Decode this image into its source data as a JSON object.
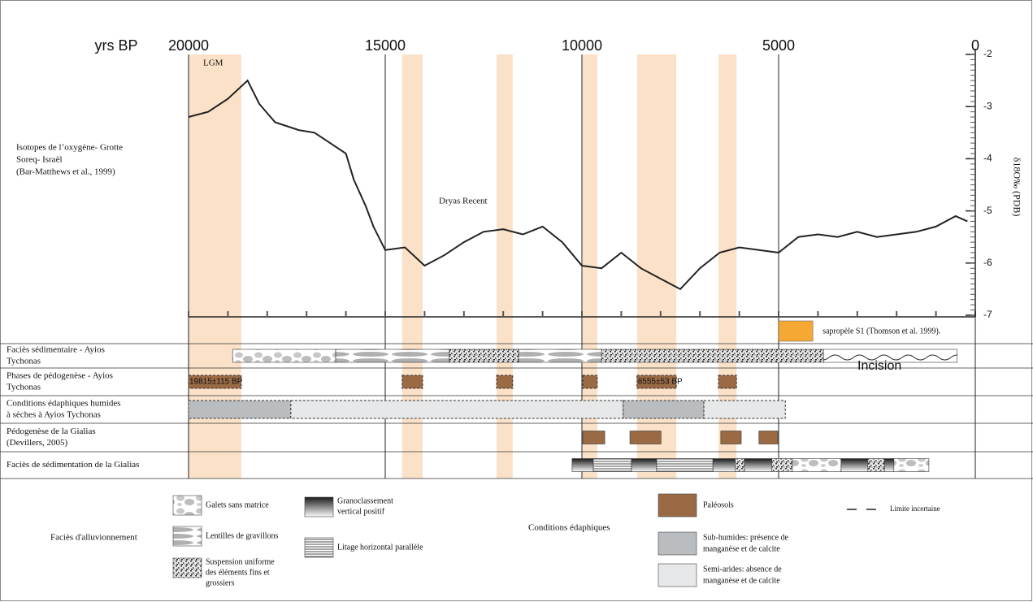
{
  "chart_data": {
    "type": "line",
    "x_label": "yrs BP",
    "y_label": "δ18O‰ (PDB)",
    "series_title": [
      "Isotopes de l’oxygène- Grotte",
      "Soreq- Israël",
      "(Bar-Matthews et al., 1999)"
    ],
    "annotations": [
      "LGM",
      "Dryas Recent"
    ],
    "x": [
      20000,
      19500,
      19000,
      18500,
      18200,
      17800,
      17200,
      16800,
      16400,
      16000,
      15800,
      15500,
      15300,
      15000,
      14500,
      14000,
      13500,
      13000,
      12500,
      12000,
      11500,
      11000,
      10500,
      10000,
      9500,
      9000,
      8500,
      8000,
      7500,
      7000,
      6500,
      6000,
      5500,
      5000,
      4500,
      4000,
      3500,
      3000,
      2500,
      2000,
      1500,
      1000,
      500,
      200
    ],
    "series": [
      {
        "color": "#222222",
        "values": [
          -3.2,
          -3.1,
          -2.85,
          -2.5,
          -2.95,
          -3.3,
          -3.45,
          -3.5,
          -3.7,
          -3.9,
          -4.4,
          -4.9,
          -5.3,
          -5.75,
          -5.7,
          -6.05,
          -5.85,
          -5.6,
          -5.4,
          -5.35,
          -5.45,
          -5.3,
          -5.6,
          -6.05,
          -6.1,
          -5.8,
          -6.1,
          -6.3,
          -6.5,
          -6.1,
          -5.8,
          -5.7,
          -5.75,
          -5.8,
          -5.5,
          -5.45,
          -5.5,
          -5.4,
          -5.5,
          -5.45,
          -5.4,
          -5.3,
          -5.1,
          -5.2
        ]
      }
    ],
    "xlim": [
      20000,
      0
    ],
    "xticks": [
      20000,
      15000,
      10000,
      5000,
      0
    ],
    "ylim": [
      -7,
      -2
    ],
    "yticks": [
      -2,
      -3,
      -4,
      -5,
      -6,
      -7
    ],
    "shaded_periods": [
      [
        20000,
        18660
      ],
      [
        14570,
        14050
      ],
      [
        12170,
        11760
      ],
      [
        9980,
        9610
      ],
      [
        8600,
        7600
      ],
      [
        6530,
        6070
      ]
    ],
    "shade_color": "#fbe1c8",
    "sapropel": {
      "label": "sapropèle S1 (Thomson et al. 1999).",
      "period": [
        5000,
        4130
      ],
      "color": "#f5a833"
    }
  },
  "rows": [
    {
      "label": [
        "Faciès sédimentaire - Ayios",
        "Tychonas"
      ],
      "note": "Incision",
      "segments": [
        {
          "period": [
            18880,
            16260
          ],
          "pattern": 0
        },
        {
          "period": [
            16260,
            13370
          ],
          "pattern": 1
        },
        {
          "period": [
            13370,
            11610
          ],
          "pattern": 2
        },
        {
          "period": [
            11610,
            9500
          ],
          "pattern": 1
        },
        {
          "period": [
            9500,
            3860
          ],
          "pattern": 2
        },
        {
          "period": [
            3860,
            460
          ],
          "pattern": 8
        }
      ]
    },
    {
      "label": [
        "Phases de pédogenèse - Ayios",
        "Tychonas"
      ],
      "segments": [
        {
          "period": [
            20000,
            18660
          ],
          "pattern": 5,
          "label": "19815±115 BP"
        },
        {
          "period": [
            14570,
            14050
          ],
          "pattern": 5
        },
        {
          "period": [
            12170,
            11760
          ],
          "pattern": 5
        },
        {
          "period": [
            9980,
            9610
          ],
          "pattern": 5
        },
        {
          "period": [
            8600,
            7600
          ],
          "pattern": 5,
          "label": "8555±53 BP"
        },
        {
          "period": [
            6530,
            6070
          ],
          "pattern": 5
        }
      ]
    },
    {
      "label": [
        "Conditions édaphiques humides",
        "à sèches à Ayios Tychonas"
      ],
      "segments": [
        {
          "period": [
            20000,
            17400
          ],
          "pattern": 6
        },
        {
          "period": [
            17400,
            8950
          ],
          "pattern": 7
        },
        {
          "period": [
            8950,
            6900
          ],
          "pattern": 6
        },
        {
          "period": [
            6900,
            4830
          ],
          "pattern": 7
        }
      ]
    },
    {
      "label": [
        "Pédogenèse de la Gialias",
        "(Devillers, 2005)"
      ],
      "segments": [
        {
          "period": [
            9980,
            9420
          ],
          "pattern": 5
        },
        {
          "period": [
            8780,
            7990
          ],
          "pattern": 5
        },
        {
          "period": [
            6470,
            5950
          ],
          "pattern": 5
        },
        {
          "period": [
            5500,
            5020
          ],
          "pattern": 5
        }
      ]
    },
    {
      "label": [
        "Faciès de sédimentation de la Gialias"
      ],
      "segments": [
        {
          "period": [
            10250,
            9710
          ],
          "pattern": 3
        },
        {
          "period": [
            9710,
            8740
          ],
          "pattern": 4
        },
        {
          "period": [
            8740,
            8100
          ],
          "pattern": 3
        },
        {
          "period": [
            8100,
            6670
          ],
          "pattern": 4
        },
        {
          "period": [
            6670,
            6100
          ],
          "pattern": 3
        },
        {
          "period": [
            6100,
            5870
          ],
          "pattern": 2
        },
        {
          "period": [
            5870,
            5170
          ],
          "pattern": 3
        },
        {
          "period": [
            5170,
            4650
          ],
          "pattern": 2
        },
        {
          "period": [
            4650,
            3410
          ],
          "pattern": 0
        },
        {
          "period": [
            3410,
            2730
          ],
          "pattern": 3
        },
        {
          "period": [
            2730,
            2310
          ],
          "pattern": 2
        },
        {
          "period": [
            2310,
            2070
          ],
          "pattern": 3
        },
        {
          "period": [
            2070,
            1180
          ],
          "pattern": 0
        }
      ]
    }
  ],
  "legend": {
    "alluvial": {
      "title": "Faciès d'alluvionnement",
      "items": [
        {
          "label": [
            "Galets sans matrice"
          ]
        },
        {
          "label": [
            "Lentilles de gravillons"
          ]
        },
        {
          "label": [
            "Suspension uniforme",
            "des éléments fins et",
            "grossiers"
          ]
        },
        {
          "label": [
            "Granoclassement",
            "vertical positif"
          ]
        },
        {
          "label": [
            "Litage horizontal parallèle"
          ]
        }
      ]
    },
    "edaphic": {
      "title": "Conditions édaphiques",
      "items": [
        {
          "label": [
            "Paléosols"
          ],
          "color": "#9a6a45"
        },
        {
          "label": [
            "Sub-humides: présence de",
            "manganèse et de calcite"
          ],
          "color": "#b9bdc0"
        },
        {
          "label": [
            "Semi-arides: absence de",
            "manganèse et de calcite"
          ],
          "color": "#e7e8e9"
        }
      ]
    },
    "uncertain": "Limite incertaine"
  }
}
